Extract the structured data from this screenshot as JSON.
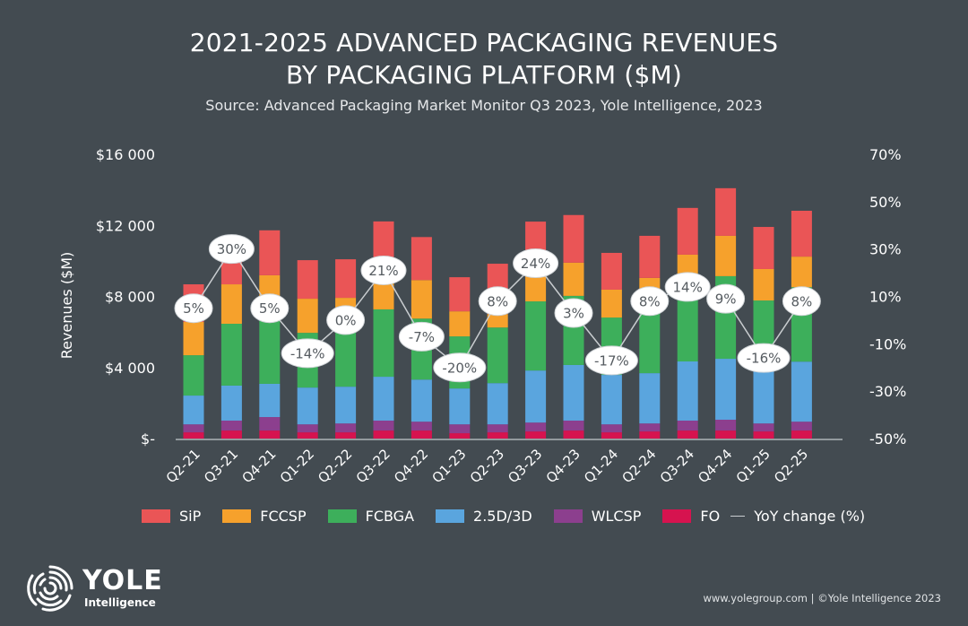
{
  "chart_data": {
    "type": "bar",
    "stacked": true,
    "title": "2021-2025 ADVANCED PACKAGING REVENUES BY PACKAGING PLATFORM ($M)",
    "title_lines": [
      "2021-2025 ADVANCED PACKAGING REVENUES",
      "BY PACKAGING PLATFORM ($M)"
    ],
    "subtitle": "Source: Advanced Packaging Market Monitor Q3 2023, Yole Intelligence, 2023",
    "xlabel": "",
    "ylabel": "Revenues ($M)",
    "ylim": [
      0,
      16000
    ],
    "y_ticks": [
      0,
      4000,
      8000,
      12000,
      16000
    ],
    "y_tick_labels": [
      "$-",
      "$4 000",
      "$8 000",
      "$12 000",
      "$16 000"
    ],
    "y2lim": [
      -50,
      70
    ],
    "y2_ticks": [
      -50,
      -30,
      -10,
      10,
      30,
      50,
      70
    ],
    "y2_tick_labels": [
      "-50%",
      "-30%",
      "-10%",
      "10%",
      "30%",
      "50%",
      "70%"
    ],
    "grid": false,
    "legend_position": "bottom",
    "categories": [
      "Q2-21",
      "Q3-21",
      "Q4-21",
      "Q1-22",
      "Q2-22",
      "Q3-22",
      "Q4-22",
      "Q1-23",
      "Q2-23",
      "Q3-23",
      "Q4-23",
      "Q1-24",
      "Q2-24",
      "Q3-24",
      "Q4-24",
      "Q1-25",
      "Q2-25"
    ],
    "series": [
      {
        "name": "FO",
        "color": "#d6134f",
        "values": [
          350,
          450,
          450,
          350,
          350,
          450,
          450,
          300,
          350,
          400,
          450,
          350,
          400,
          450,
          450,
          400,
          450
        ]
      },
      {
        "name": "WLCSP",
        "color": "#8c3f8e",
        "values": [
          450,
          560,
          760,
          450,
          500,
          560,
          500,
          500,
          450,
          500,
          560,
          450,
          450,
          560,
          610,
          450,
          500
        ]
      },
      {
        "name": "2.5D/3D",
        "color": "#5aa5de",
        "values": [
          1620,
          1970,
          1870,
          2070,
          2070,
          2470,
          2370,
          2020,
          2320,
          2930,
          3130,
          2780,
          2830,
          3330,
          3430,
          3080,
          3380
        ]
      },
      {
        "name": "FCBGA",
        "color": "#3daf5b",
        "values": [
          2270,
          3480,
          4900,
          3080,
          4340,
          3790,
          3430,
          2930,
          3130,
          3890,
          3890,
          3230,
          4750,
          4550,
          4650,
          3840,
          4190
        ]
      },
      {
        "name": "FCCSP",
        "color": "#f6a12c",
        "values": [
          1870,
          2220,
          1210,
          1920,
          660,
          2420,
          2170,
          1410,
          760,
          2020,
          1870,
          1570,
          610,
          1460,
          2270,
          1770,
          1720
        ]
      },
      {
        "name": "SiP",
        "color": "#ea5556",
        "values": [
          2120,
          1260,
          2530,
          2170,
          2170,
          2530,
          2420,
          1920,
          2830,
          2470,
          2680,
          2070,
          2370,
          2630,
          2680,
          2370,
          2580
        ]
      }
    ],
    "line_series": {
      "name": "YoY change (%)",
      "axis": "right",
      "color": "#c9cdd0",
      "values": [
        5,
        30,
        5,
        -14,
        0,
        21,
        -7,
        -20,
        8,
        24,
        3,
        -17,
        8,
        14,
        9,
        -16,
        8
      ],
      "labels": [
        "5%",
        "30%",
        "5%",
        "-14%",
        "0%",
        "21%",
        "-7%",
        "-20%",
        "8%",
        "24%",
        "3%",
        "-17%",
        "8%",
        "14%",
        "9%",
        "-16%",
        "8%"
      ]
    },
    "legend": [
      {
        "label": "SiP",
        "color": "#ea5556"
      },
      {
        "label": "FCCSP",
        "color": "#f6a12c"
      },
      {
        "label": "FCBGA",
        "color": "#3daf5b"
      },
      {
        "label": "2.5D/3D",
        "color": "#5aa5de"
      },
      {
        "label": "WLCSP",
        "color": "#8c3f8e"
      },
      {
        "label": "FO",
        "color": "#d6134f"
      },
      {
        "label": "YoY change (%)",
        "color": "#c9cdd0",
        "kind": "line"
      }
    ]
  },
  "branding": {
    "logo_name": "YOLE",
    "logo_sub": "Intelligence",
    "footer": "www.yolegroup.com | ©Yole Intelligence 2023"
  }
}
